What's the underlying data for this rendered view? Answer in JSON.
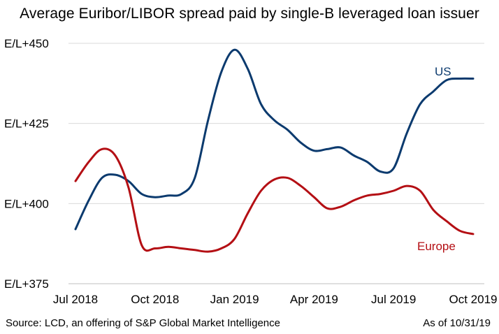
{
  "chart_data": {
    "type": "line",
    "title": "Average Euribor/LIBOR spread paid by single-B leveraged loan issuer",
    "y_ticks": [
      "E/L+450",
      "E/L+425",
      "E/L+400",
      "E/L+375"
    ],
    "y_tick_values": [
      450,
      425,
      400,
      375
    ],
    "ylim": [
      375,
      450
    ],
    "x_ticks": [
      "Jul 2018",
      "Oct 2018",
      "Jan 2019",
      "Apr 2019",
      "Jul 2019",
      "Oct 2019"
    ],
    "xlim": [
      0,
      15
    ],
    "grid": true,
    "series": [
      {
        "name": "US",
        "color": "#0b3a6e",
        "x": [
          0,
          0.5,
          1.0,
          1.5,
          2.0,
          2.5,
          3.0,
          3.5,
          4.0,
          4.5,
          5.0,
          5.5,
          6.0,
          6.5,
          7.0,
          7.5,
          8.0,
          8.5,
          9.0,
          9.5,
          10.0,
          10.5,
          11.0,
          11.5,
          12.0,
          12.5,
          13.0,
          13.5,
          14.0,
          14.5,
          15.0
        ],
        "values": [
          392,
          401,
          408,
          409,
          407,
          403,
          402,
          402.5,
          403,
          408,
          426,
          441,
          448,
          442,
          431,
          426,
          423,
          419,
          416.5,
          417,
          417.5,
          415,
          413,
          410,
          411,
          422,
          431,
          435,
          438.5,
          439,
          439
        ]
      },
      {
        "name": "Europe",
        "color": "#b40f14",
        "x": [
          0,
          0.5,
          1.0,
          1.5,
          2.0,
          2.5,
          3.0,
          3.5,
          4.0,
          4.5,
          5.0,
          5.5,
          6.0,
          6.5,
          7.0,
          7.5,
          8.0,
          8.5,
          9.0,
          9.5,
          10.0,
          10.5,
          11.0,
          11.5,
          12.0,
          12.5,
          13.0,
          13.5,
          14.0,
          14.5,
          15.0
        ],
        "values": [
          407,
          413,
          417,
          415,
          405,
          387,
          386,
          386.5,
          386,
          385.5,
          385,
          386,
          389,
          397,
          404,
          407.5,
          408,
          405.5,
          402,
          398.5,
          399,
          401,
          402.5,
          403,
          404,
          405.5,
          404,
          398,
          394.5,
          391.5,
          390.5
        ]
      }
    ]
  },
  "footer": {
    "source": "Source: LCD, an offering of S&P Global Market Intelligence",
    "as_of": "As of 10/31/19"
  }
}
